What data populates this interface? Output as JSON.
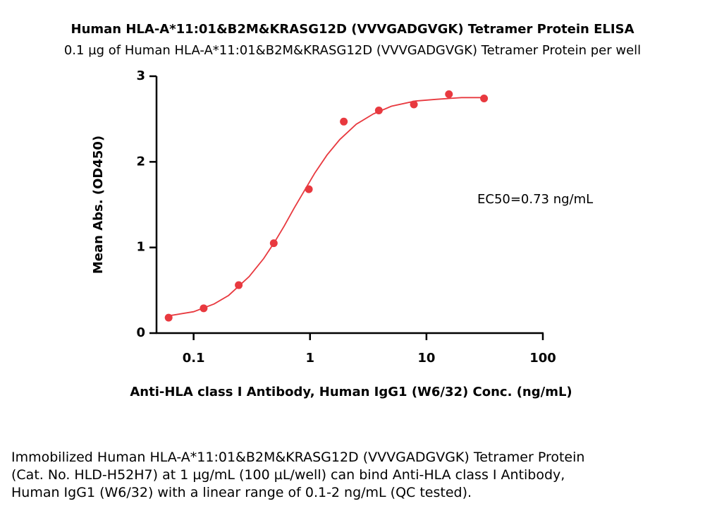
{
  "chart_data": {
    "type": "scatter",
    "title": "Human HLA-A*11:01&B2M&KRASG12D (VVVGADGVGK) Tetramer Protein ELISA",
    "subtitle": "0.1 µg of Human HLA-A*11:01&B2M&KRASG12D (VVVGADGVGK) Tetramer Protein per well",
    "x_label": "Anti-HLA class I Antibody, Human IgG1 (W6/32) Conc. (ng/mL)",
    "y_label": "Mean Abs. (OD450)",
    "annotation": "EC50=0.73 ng/mL",
    "x_scale": "log",
    "xlim": [
      0.048,
      100
    ],
    "xticks": [
      0.1,
      1,
      10,
      100
    ],
    "ylim": [
      0,
      3
    ],
    "yticks": [
      0,
      1,
      2,
      3
    ],
    "series": [
      {
        "color": "#e8393f",
        "x": [
          0.061,
          0.122,
          0.244,
          0.488,
          0.977,
          1.95,
          3.9,
          7.8,
          15.6,
          31.25
        ],
        "values": [
          0.18,
          0.29,
          0.56,
          1.05,
          1.68,
          2.47,
          2.6,
          2.67,
          2.79,
          2.74
        ]
      }
    ],
    "curve": {
      "color": "#e8393f",
      "x": [
        0.06,
        0.1,
        0.15,
        0.2,
        0.3,
        0.4,
        0.5,
        0.6,
        0.73,
        0.9,
        1.1,
        1.4,
        1.8,
        2.5,
        3.5,
        5,
        8,
        12,
        20,
        31.25
      ],
      "values": [
        0.2,
        0.25,
        0.34,
        0.44,
        0.66,
        0.87,
        1.07,
        1.25,
        1.46,
        1.67,
        1.87,
        2.08,
        2.26,
        2.44,
        2.56,
        2.65,
        2.71,
        2.73,
        2.75,
        2.75
      ]
    }
  },
  "caption": "Immobilized Human HLA-A*11:01&B2M&KRASG12D (VVVGADGVGK) Tetramer Protein (Cat. No. HLD-H52H7) at 1 µg/mL (100 µL/well) can bind Anti-HLA class I Antibody, Human IgG1 (W6/32) with a linear range of 0.1-2 ng/mL (QC tested)."
}
